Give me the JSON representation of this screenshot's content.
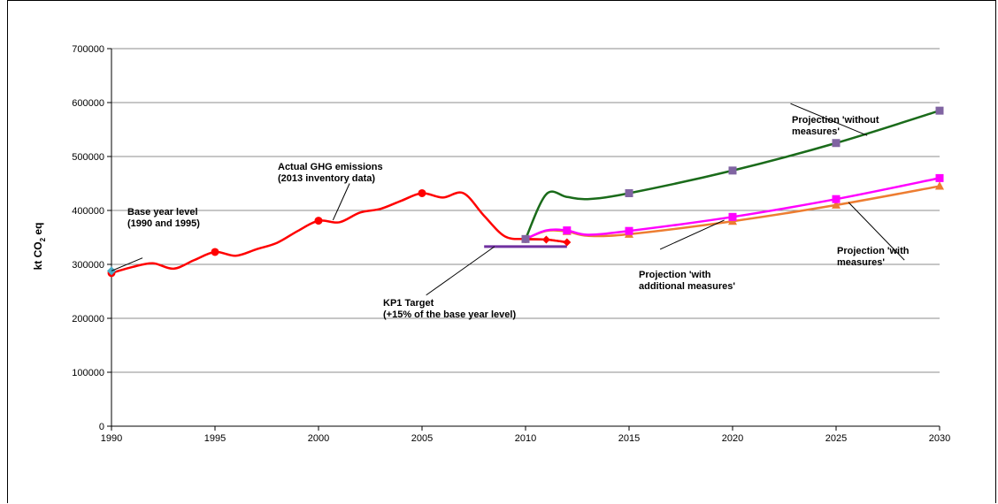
{
  "chart_data": {
    "type": "line",
    "ylabel": "kt CO",
    "ylabel_sub": "2",
    "ylabel_suffix": " eq",
    "xlim": [
      1990,
      2030
    ],
    "ylim": [
      0,
      700000
    ],
    "x_ticks": [
      "1990",
      "1995",
      "2000",
      "2005",
      "2010",
      "2015",
      "2020",
      "2025",
      "2030"
    ],
    "y_ticks": [
      "0",
      "100000",
      "200000",
      "300000",
      "400000",
      "500000",
      "600000",
      "700000"
    ],
    "grid": true,
    "series": [
      {
        "key": "actual",
        "color": "#ff0000",
        "marker": "circle",
        "x": [
          1990,
          1991,
          1992,
          1993,
          1994,
          1995,
          1996,
          1997,
          1998,
          1999,
          2000,
          2001,
          2002,
          2003,
          2004,
          2005,
          2006,
          2007,
          2008,
          2009,
          2010,
          2011,
          2012
        ],
        "y": [
          284000,
          295000,
          302000,
          292000,
          308000,
          323000,
          316000,
          328000,
          340000,
          362000,
          381000,
          378000,
          396000,
          403000,
          418000,
          432000,
          424000,
          432000,
          390000,
          352000,
          347000,
          346000,
          341000
        ],
        "marked_x": [
          1990,
          1995,
          2000,
          2005,
          2010
        ]
      },
      {
        "key": "actual-end",
        "color": "#ff0000",
        "marker": "diamond",
        "x": [
          2010,
          2011,
          2012
        ],
        "y": [
          347000,
          346000,
          341000
        ],
        "marked_x": [
          2011,
          2012
        ]
      },
      {
        "key": "without-measures",
        "color": "#1a6b1a",
        "marker": "square",
        "marker_color": "#8064a2",
        "x": [
          2010,
          2011,
          2012,
          2013,
          2015,
          2020,
          2025,
          2030
        ],
        "y": [
          347000,
          430000,
          425000,
          421000,
          432000,
          474000,
          525000,
          585000
        ],
        "marked_x": [
          2015,
          2020,
          2025,
          2030
        ]
      },
      {
        "key": "with-measures",
        "color": "#ff00ff",
        "marker": "square",
        "x": [
          2010,
          2011,
          2012,
          2013,
          2015,
          2020,
          2025,
          2030
        ],
        "y": [
          347000,
          363000,
          363000,
          355000,
          362000,
          388000,
          421000,
          460000
        ],
        "marked_x": [
          2012,
          2015,
          2020,
          2025,
          2030
        ]
      },
      {
        "key": "with-additional-measures",
        "color": "#ed7d31",
        "marker": "triangle",
        "x": [
          2010,
          2011,
          2012,
          2013,
          2015,
          2020,
          2025,
          2030
        ],
        "y": [
          347000,
          362000,
          361000,
          353000,
          356000,
          380000,
          410000,
          445000
        ],
        "marked_x": [
          2012,
          2015,
          2020,
          2025,
          2030
        ]
      }
    ],
    "target": {
      "color": "#7030a0",
      "x": [
        2008,
        2012
      ],
      "y": 333000
    },
    "base_year_marker": {
      "color": "#4bacc6",
      "x": 1990,
      "y": 288000
    },
    "annotations": [
      {
        "key": "base-year",
        "lines": [
          "Base year level",
          "(1990 and 1995)"
        ],
        "ax": 1990,
        "ay": 288000,
        "from_x": 1991.5,
        "from_y": 312000
      },
      {
        "key": "actual-ghg",
        "lines": [
          "Actual GHG emissions",
          "(2013  inventory data)"
        ],
        "ax": 2000.7,
        "ay": 382000,
        "from_x": 2001.5,
        "from_y": 450000
      },
      {
        "key": "kp1-target",
        "lines": [
          "KP1 Target",
          "(+15% of the base year level)"
        ],
        "ax": 2008.5,
        "ay": 333000,
        "from_x": 2005.2,
        "from_y": 243000
      },
      {
        "key": "without",
        "lines": [
          "Projection 'without",
          "measures'"
        ],
        "ax": 2026.5,
        "ay": 539000,
        "from_x": 2022.8,
        "from_y": 598000
      },
      {
        "key": "additional",
        "lines": [
          "Projection 'with",
          "additional  measures'"
        ],
        "ax": 2019.6,
        "ay": 382000,
        "from_x": 2016.5,
        "from_y": 328000
      },
      {
        "key": "with",
        "lines": [
          "Projection 'with",
          "measures'"
        ],
        "ax": 2025.6,
        "ay": 415000,
        "from_x": 2028.3,
        "from_y": 308000
      }
    ]
  }
}
